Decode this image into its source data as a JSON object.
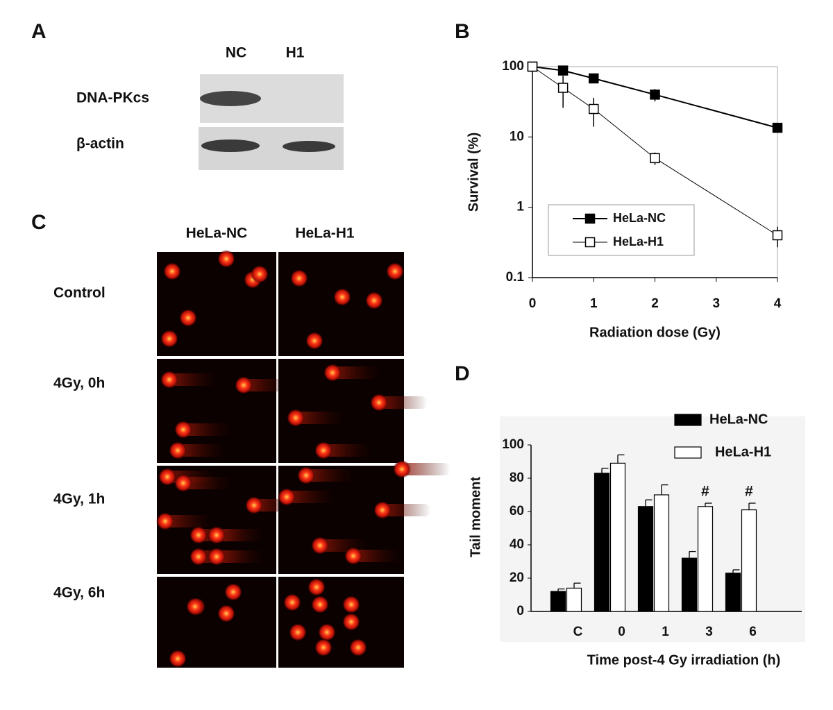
{
  "panels": {
    "a": "A",
    "b": "B",
    "c": "C",
    "d": "D"
  },
  "blot": {
    "columns": [
      "NC",
      "H1"
    ],
    "rows": [
      "DNA-PKcs",
      "β-actin"
    ]
  },
  "comet": {
    "columns": [
      "HeLa-NC",
      "HeLa-H1"
    ],
    "rows": [
      "Control",
      "4Gy, 0h",
      "4Gy, 1h",
      "4Gy, 6h"
    ]
  },
  "chart_data": [
    {
      "type": "line",
      "xlabel": "Radiation dose (Gy)",
      "ylabel": "Survival (%)",
      "x": [
        0,
        0.5,
        1,
        2,
        4
      ],
      "xlim": [
        0,
        4
      ],
      "xticks": [
        0,
        1,
        2,
        3,
        4
      ],
      "ylim": [
        0.1,
        100
      ],
      "yticks": [
        0.1,
        1,
        10,
        100
      ],
      "log_y": true,
      "legend": "lower-center",
      "series": [
        {
          "name": "HeLa-NC",
          "color": "#000000",
          "marker_fill": "#000000",
          "line_width": 2,
          "values": [
            100,
            88,
            68,
            40,
            13.5
          ],
          "errors": [
            0,
            8,
            10,
            8,
            1
          ]
        },
        {
          "name": "HeLa-H1",
          "color": "#000000",
          "marker_fill": "#ffffff",
          "line_width": 1,
          "values": [
            100,
            50,
            25,
            5,
            0.4
          ],
          "errors": [
            0,
            24,
            11,
            1,
            0.13
          ]
        }
      ]
    },
    {
      "type": "bar",
      "xlabel": "Time post-4 Gy irradiation (h)",
      "ylabel": "Tail moment",
      "categories": [
        "C",
        "0",
        "1",
        "3",
        "6"
      ],
      "ylim": [
        0,
        100
      ],
      "yticks": [
        0,
        20,
        40,
        60,
        80,
        100
      ],
      "legend": "upper-right",
      "series": [
        {
          "name": "HeLa-NC",
          "color": "#000000",
          "values": [
            12,
            83,
            63,
            32,
            23
          ],
          "errors": [
            1.5,
            3,
            4,
            4,
            2
          ]
        },
        {
          "name": "HeLa-H1",
          "color": "#ffffff",
          "values": [
            14,
            89,
            70,
            63,
            61
          ],
          "errors": [
            3,
            5,
            6,
            2,
            4
          ]
        }
      ],
      "annotations": [
        {
          "text": "#",
          "x": "3"
        },
        {
          "text": "#",
          "x": "6"
        }
      ]
    }
  ]
}
